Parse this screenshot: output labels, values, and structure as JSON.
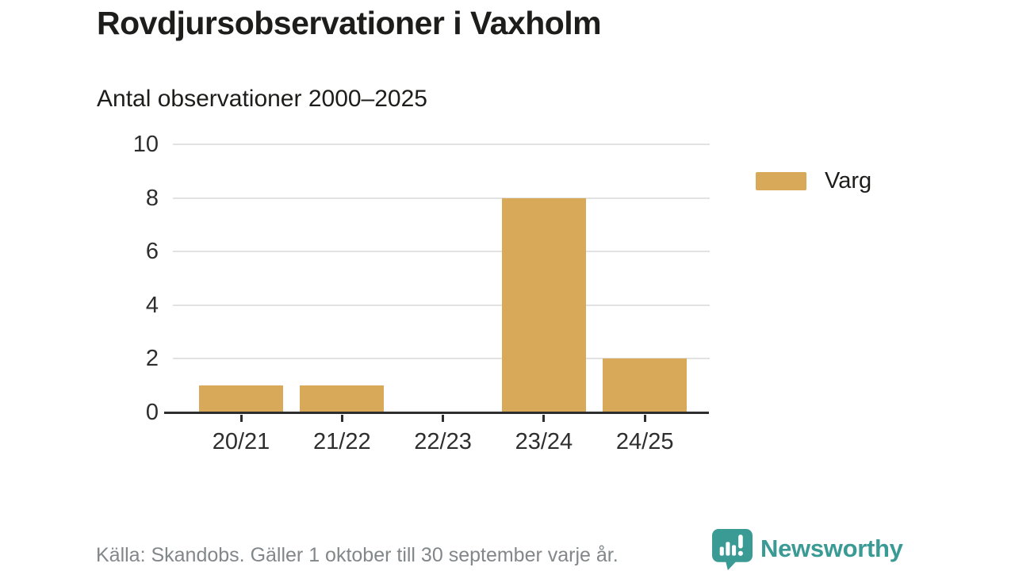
{
  "header": {
    "title": "Rovdjursobservationer i Vaxholm",
    "subtitle": "Antal observationer 2000–2025"
  },
  "chart_data": {
    "type": "bar",
    "title": "Rovdjursobservationer i Vaxholm",
    "subtitle": "Antal observationer 2000–2025",
    "categories": [
      "20/21",
      "21/22",
      "22/23",
      "23/24",
      "24/25"
    ],
    "series": [
      {
        "name": "Varg",
        "color": "#d8a958",
        "values": [
          1,
          1,
          0,
          8,
          2
        ]
      }
    ],
    "xlabel": "",
    "ylabel": "",
    "ylim": [
      0,
      10
    ],
    "yticks": [
      0,
      2,
      4,
      6,
      8,
      10
    ],
    "grid": true,
    "legend_position": "right"
  },
  "legend": {
    "items": [
      {
        "label": "Varg",
        "color": "#d8a958"
      }
    ]
  },
  "footer": {
    "source": "Källa: Skandobs. Gäller 1 oktober till 30 september varje år.",
    "brand": "Newsworthy"
  },
  "colors": {
    "bar": "#d8a958",
    "brand_teal": "#3a9a94",
    "grid": "#e2e2e2",
    "axis": "#2e2e2e",
    "title_text": "#1d1d1b",
    "muted_text": "#82878a"
  },
  "icons": {
    "brand_logo": "newsworthy-speech-bubble-chart-icon"
  }
}
